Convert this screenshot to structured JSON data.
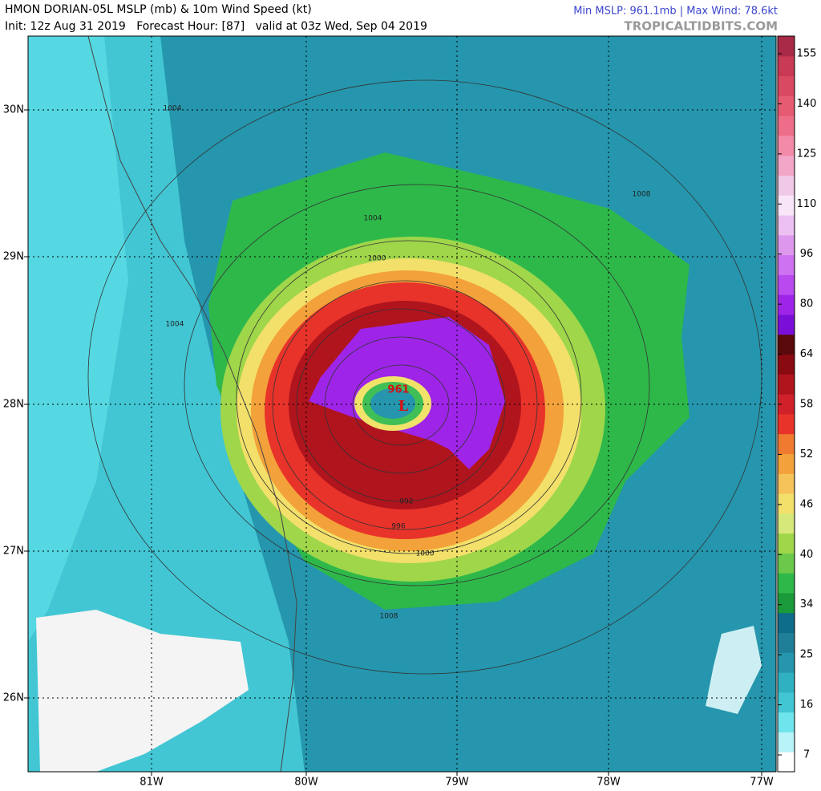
{
  "header": {
    "title": "HMON DORIAN-05L MSLP (mb) & 10m Wind Speed (kt)",
    "subtitle": "Init: 12z Aug 31 2019   Forecast Hour: [87]   valid at 03z Wed, Sep 04 2019",
    "stats": "Min MSLP: 961.1mb | Max Wind: 78.6kt",
    "credit": "TROPICALTIDBITS.COM"
  },
  "map": {
    "lat_labels": [
      "30N",
      "29N",
      "28N",
      "27N",
      "26N"
    ],
    "lon_labels": [
      "81W",
      "80W",
      "79W",
      "78W",
      "77W"
    ],
    "low_symbol": "L",
    "center_pressure": "961",
    "contour_labels": [
      "1004",
      "1000",
      "1000",
      "1004",
      "1008",
      "1004",
      "1008",
      "996",
      "992"
    ]
  },
  "colorbar": {
    "labels": [
      "155",
      "140",
      "125",
      "110",
      "96",
      "80",
      "64",
      "58",
      "52",
      "46",
      "40",
      "34",
      "25",
      "16",
      "7"
    ]
  }
}
